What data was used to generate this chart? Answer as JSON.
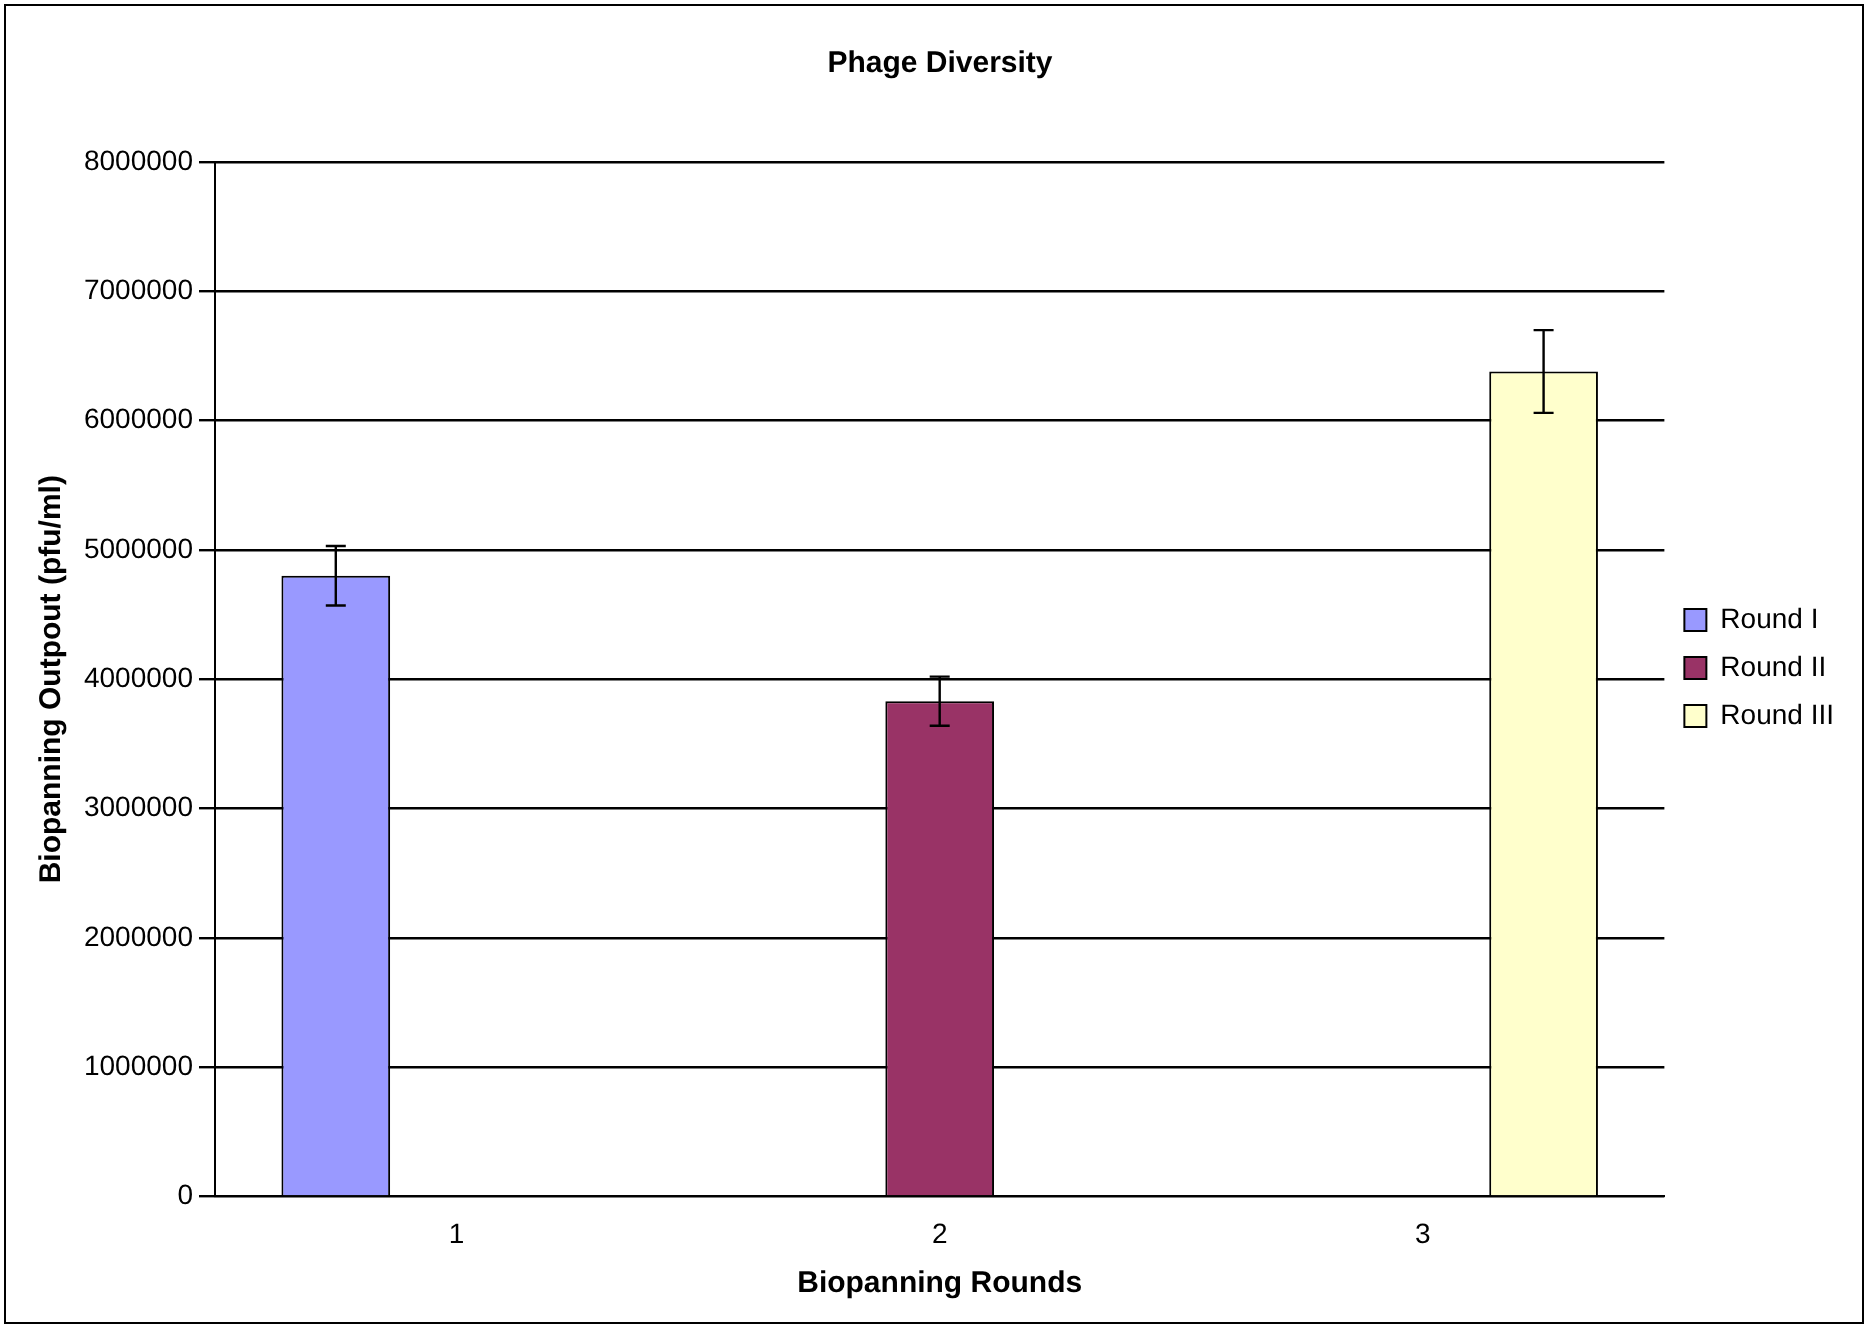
{
  "chart_data": {
    "type": "bar",
    "title": "Phage Diversity",
    "xlabel": "Biopanning Rounds",
    "ylabel": "Biopanning Outpout (pfu/ml)",
    "categories": [
      "1",
      "2",
      "3"
    ],
    "series": [
      {
        "name": "Round I",
        "color": "#9999ff",
        "values": [
          4800000,
          null,
          null
        ],
        "errors": [
          230000,
          null,
          null
        ]
      },
      {
        "name": "Round II",
        "color": "#993366",
        "values": [
          null,
          3830000,
          null
        ],
        "errors": [
          null,
          190000,
          null
        ]
      },
      {
        "name": "Round III",
        "color": "#ffffcc",
        "values": [
          null,
          null,
          6380000
        ],
        "errors": [
          null,
          null,
          320000
        ]
      }
    ],
    "ylim": [
      0,
      8000000
    ],
    "yticks": [
      0,
      1000000,
      2000000,
      3000000,
      4000000,
      5000000,
      6000000,
      7000000,
      8000000
    ],
    "grid": "y",
    "legend": "right"
  }
}
